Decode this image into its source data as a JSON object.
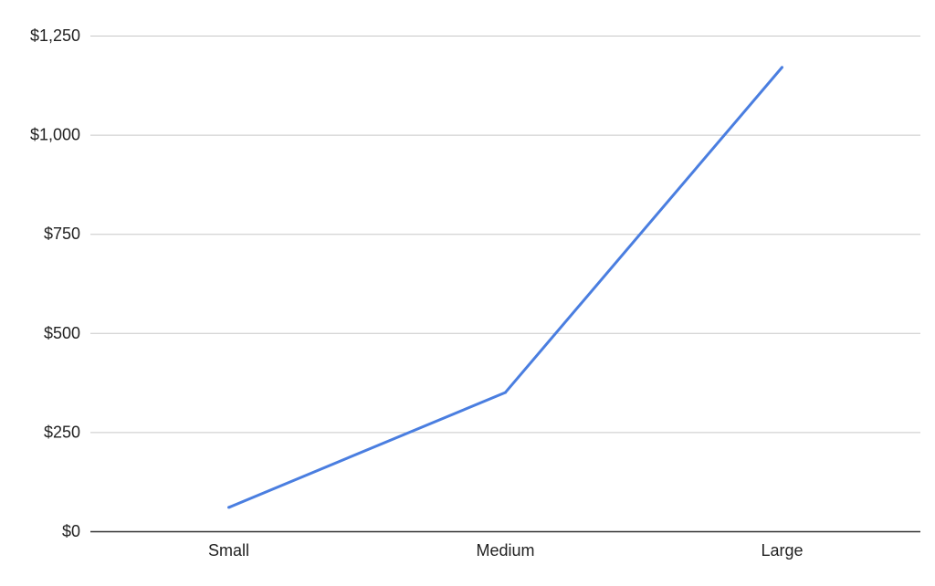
{
  "chart_data": {
    "type": "line",
    "title": "",
    "xlabel": "",
    "ylabel": "",
    "categories": [
      "Small",
      "Medium",
      "Large"
    ],
    "series": [
      {
        "values": [
          60,
          350,
          1170
        ],
        "color": "#4a7ee0"
      }
    ],
    "ylim": [
      0,
      1250
    ],
    "yticks": [
      0,
      250,
      500,
      750,
      1000,
      1250
    ],
    "ytick_labels": [
      "$0",
      "$250",
      "$500",
      "$750",
      "$1,000",
      "$1,250"
    ],
    "grid": true,
    "legend": "none"
  }
}
